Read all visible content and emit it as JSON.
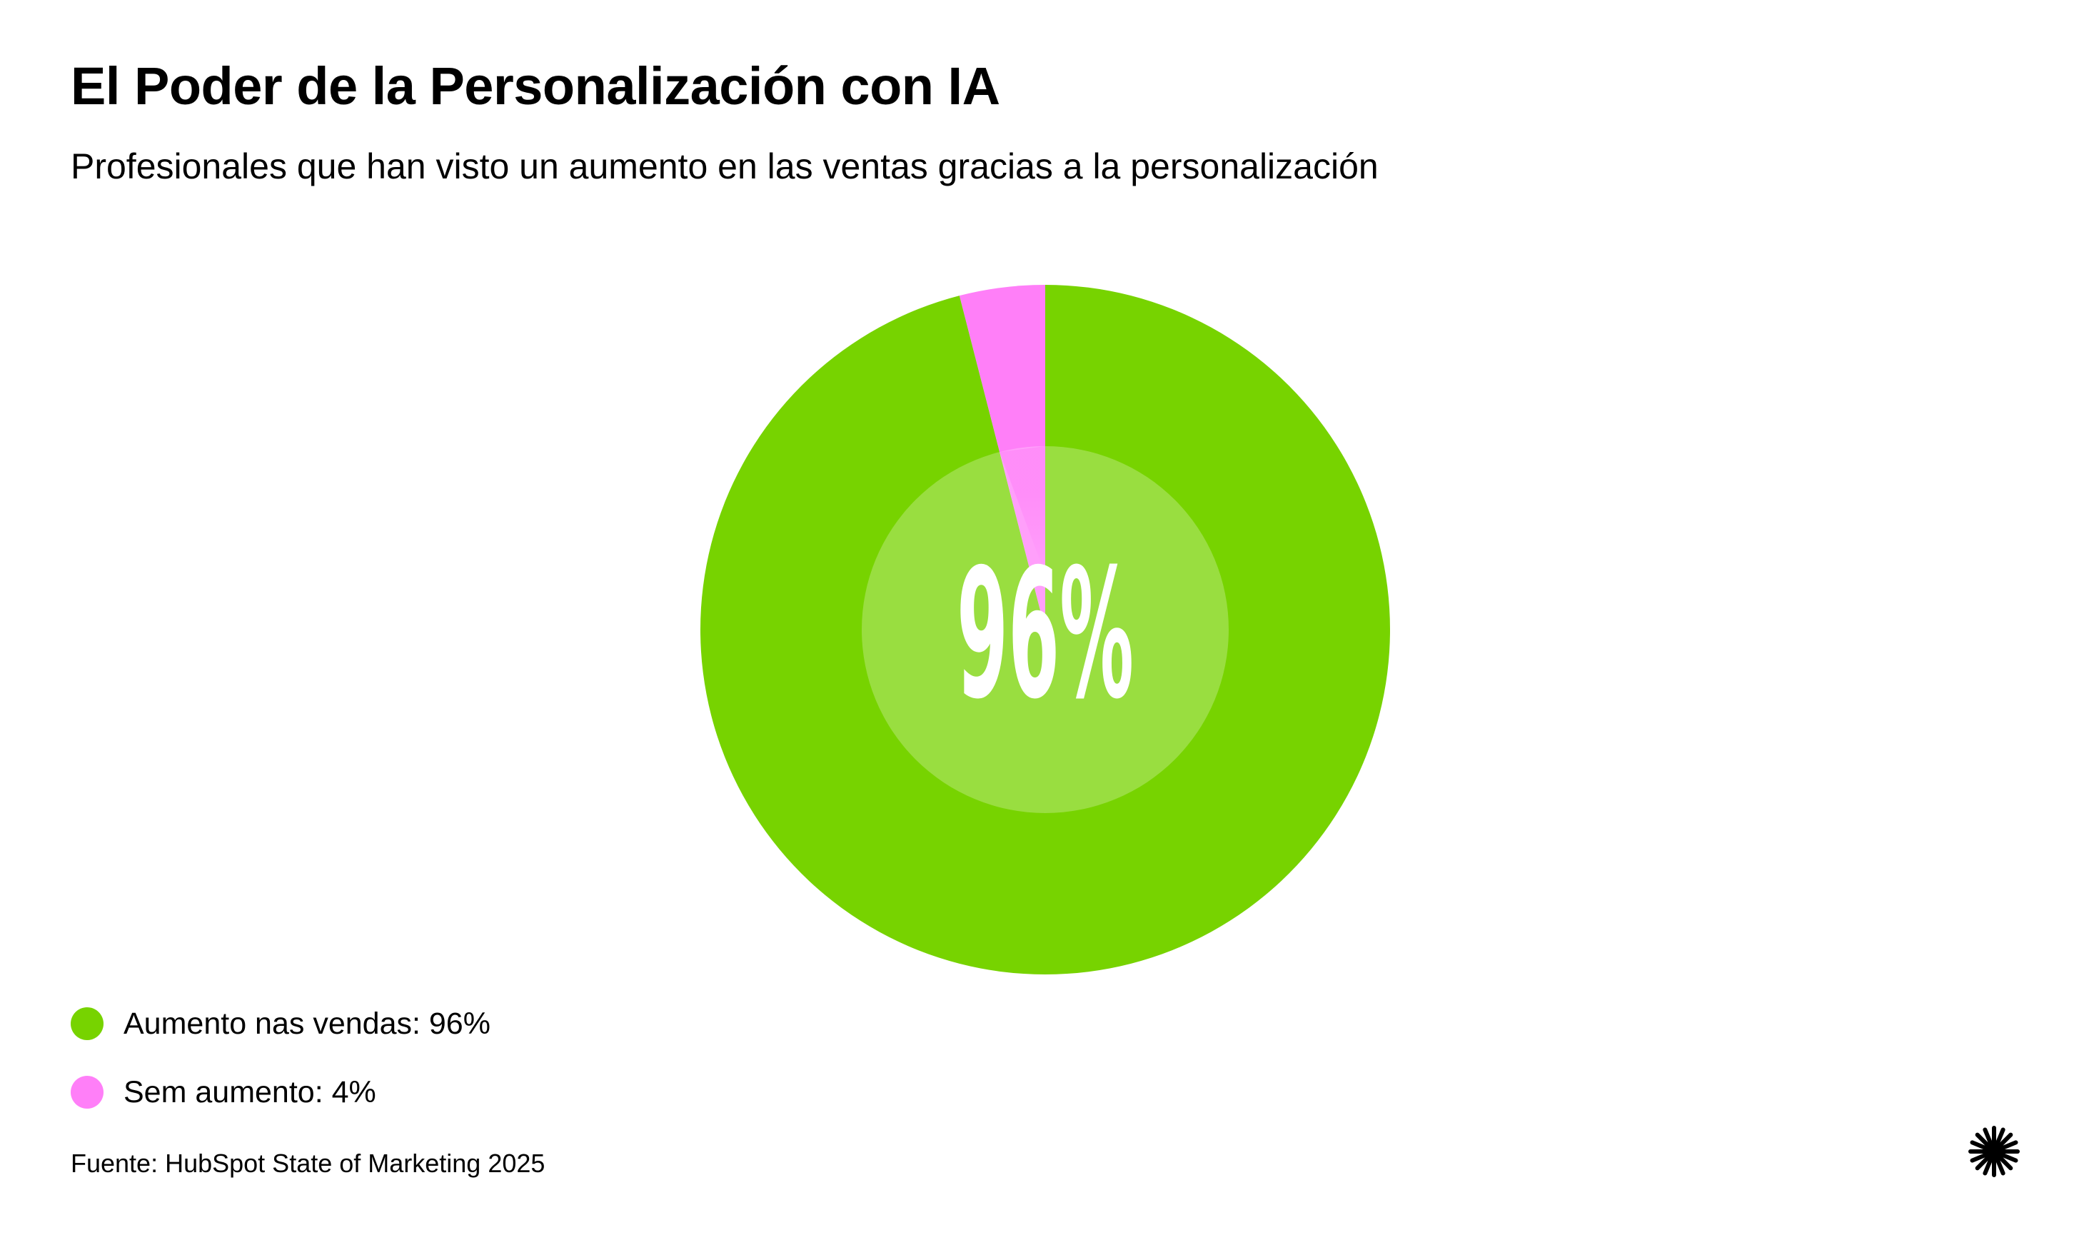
{
  "header": {
    "title": "El Poder de la Personalización con IA",
    "subtitle": "Profesionales que han visto un aumento en las ventas gracias a la personalización"
  },
  "chart_data": {
    "type": "pie",
    "title": "El Poder de la Personalización con IA",
    "subtitle": "Profesionales que han visto un aumento en las ventas gracias a la personalización",
    "categories": [
      "Aumento nas vendas",
      "Sem aumento"
    ],
    "values": [
      96,
      4
    ],
    "colors": [
      "#77d300",
      "#ff7ff8"
    ],
    "center_label": "96%",
    "legend": "bottom-left"
  },
  "legend": {
    "items": [
      {
        "label": "Aumento nas vendas: 96%",
        "color": "#77d300"
      },
      {
        "label": "Sem aumento: 4%",
        "color": "#ff7ff8"
      }
    ]
  },
  "footer": {
    "source": "Fuente: HubSpot State of Marketing 2025",
    "logo_icon": "asterisk-burst-icon"
  }
}
